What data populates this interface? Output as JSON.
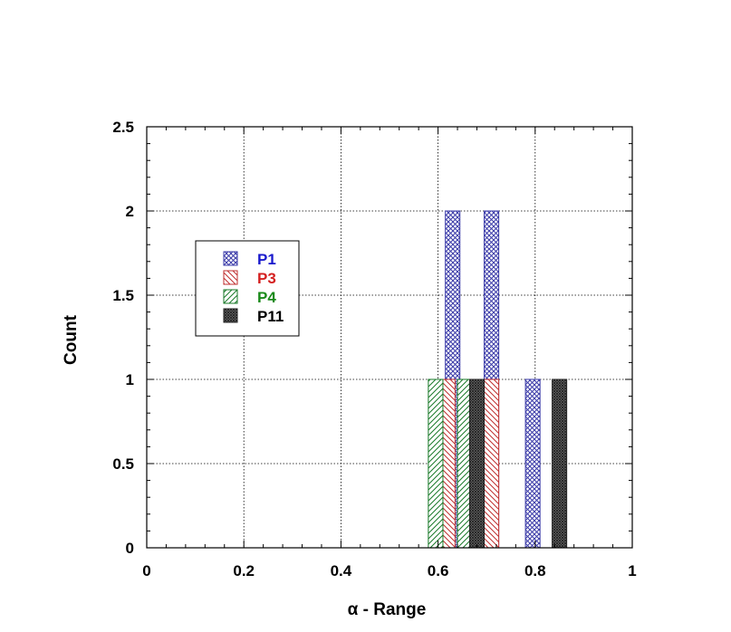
{
  "chart_data": {
    "type": "bar",
    "xlabel": "α - Range",
    "ylabel": "Count",
    "xlim": [
      0,
      1
    ],
    "ylim": [
      0,
      2.5
    ],
    "x_ticks": [
      0,
      0.2,
      0.4,
      0.6,
      0.8,
      1
    ],
    "y_ticks": [
      0,
      0.5,
      1,
      1.5,
      2,
      2.5
    ],
    "x_tick_labels": [
      "0",
      "0.2",
      "0.4",
      "0.6",
      "0.8",
      "1"
    ],
    "y_tick_labels": [
      "0",
      "0.5",
      "1",
      "1.5",
      "2",
      "2.5"
    ],
    "grid": true,
    "legend_placement": "upper-left",
    "series": [
      {
        "name": "P1",
        "label_color": "#1a1acc",
        "pattern": "crosshatch",
        "bar_color": "#3a3aa8",
        "bins": [
          {
            "x_start": 0.615,
            "x_end": 0.645,
            "count": 2
          },
          {
            "x_start": 0.695,
            "x_end": 0.725,
            "count": 2
          },
          {
            "x_start": 0.78,
            "x_end": 0.81,
            "count": 1
          }
        ]
      },
      {
        "name": "P3",
        "label_color": "#d42020",
        "pattern": "diagonal-back",
        "bar_color": "#c03030",
        "bins": [
          {
            "x_start": 0.605,
            "x_end": 0.635,
            "count": 1
          },
          {
            "x_start": 0.695,
            "x_end": 0.725,
            "count": 1
          }
        ]
      },
      {
        "name": "P4",
        "label_color": "#1a8a1a",
        "pattern": "diagonal",
        "bar_color": "#1a7a2a",
        "bins": [
          {
            "x_start": 0.58,
            "x_end": 0.61,
            "count": 1
          },
          {
            "x_start": 0.64,
            "x_end": 0.67,
            "count": 1
          }
        ]
      },
      {
        "name": "P11",
        "label_color": "#000000",
        "pattern": "dense",
        "bar_color": "#222222",
        "bins": [
          {
            "x_start": 0.665,
            "x_end": 0.695,
            "count": 1
          },
          {
            "x_start": 0.835,
            "x_end": 0.865,
            "count": 1
          }
        ]
      }
    ]
  }
}
